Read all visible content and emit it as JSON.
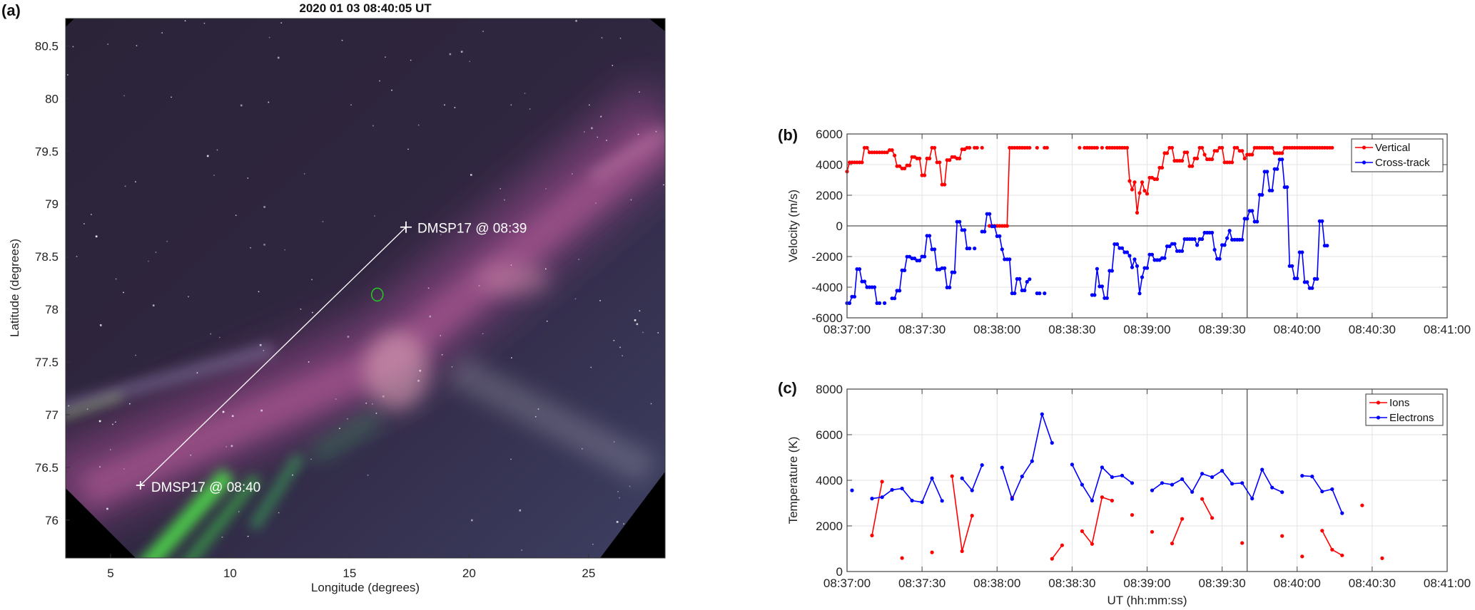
{
  "panel_a": {
    "label": "(a)",
    "title": "2020 01 03 08:40:05 UT",
    "xlabel": "Longitude (degrees)",
    "ylabel": "Latitude (degrees)",
    "xlim": [
      3.12,
      28.2
    ],
    "ylim": [
      75.64,
      80.76
    ],
    "xticks": [
      "5",
      "10",
      "15",
      "20",
      "25"
    ],
    "yticks": [
      "76",
      "76.5",
      "77",
      "77.5",
      "78",
      "78.5",
      "79",
      "79.5",
      "80",
      "80.5"
    ],
    "track": {
      "start": {
        "lon": 17.36,
        "lat": 78.78,
        "label": "DMSP17 @ 08:39"
      },
      "end": {
        "lon": 6.25,
        "lat": 76.33,
        "label": "DMSP17 @ 08:40"
      },
      "color": "#ffffff"
    },
    "marker_circle": {
      "lon": 16.16,
      "lat": 78.14,
      "color": "#22cc22"
    }
  },
  "chart_data": [
    {
      "type": "line",
      "label": "(b)",
      "ylabel": "Velocity (m/s)",
      "xlabel": "",
      "xlim": [
        "08:37:00",
        "08:41:00"
      ],
      "ylim": [
        -6000,
        6000
      ],
      "xticks": [
        "08:37:00",
        "08:37:30",
        "08:38:00",
        "08:38:30",
        "08:39:00",
        "08:39:30",
        "08:40:00",
        "08:40:30",
        "08:41:00"
      ],
      "yticks": [
        "-6000",
        "-4000",
        "-2000",
        "0",
        "2000",
        "4000",
        "6000"
      ],
      "grid": true,
      "zero_line": true,
      "vertical_marker": "08:39:40",
      "legend": "top-right",
      "x_start": "08:37:00",
      "x_step_seconds": 1,
      "series": [
        {
          "name": "Vertical",
          "color": "#ff0000",
          "values": [
            3550,
            4150,
            4150,
            4150,
            4150,
            4150,
            4150,
            5100,
            5100,
            4800,
            4800,
            4800,
            4800,
            4800,
            4800,
            4800,
            4800,
            4950,
            4950,
            4600,
            3900,
            3900,
            3750,
            3750,
            3950,
            3950,
            4500,
            4500,
            4400,
            4400,
            3300,
            3300,
            4400,
            4400,
            5100,
            5100,
            4150,
            4150,
            2700,
            2700,
            4300,
            4300,
            4500,
            4500,
            4400,
            4400,
            5000,
            5000,
            5100,
            5100,
            null,
            5100,
            5100,
            null,
            5100,
            null,
            null,
            0,
            0,
            0,
            0,
            0,
            0,
            0,
            0,
            5100,
            5100,
            5100,
            5100,
            5100,
            5100,
            5100,
            5100,
            5100,
            null,
            null,
            5100,
            null,
            null,
            5100,
            5100,
            null,
            null,
            null,
            null,
            null,
            null,
            null,
            null,
            null,
            null,
            null,
            null,
            5100,
            null,
            5100,
            5100,
            5100,
            5100,
            5100,
            5100,
            null,
            5100,
            null,
            5100,
            5100,
            5100,
            5100,
            5100,
            5100,
            5100,
            5100,
            5100,
            2930,
            2370,
            2850,
            860,
            2150,
            2850,
            2300,
            2100,
            3150,
            3150,
            3050,
            3050,
            3800,
            3800,
            4750,
            4750,
            5100,
            5100,
            4250,
            4250,
            4250,
            4250,
            4800,
            4800,
            3900,
            3900,
            4400,
            4400,
            5100,
            5100,
            4650,
            4350,
            4350,
            4350,
            4900,
            4900,
            5100,
            5100,
            4150,
            4150,
            4150,
            4150,
            5100,
            5100,
            4900,
            4900,
            4400,
            4650,
            4650,
            4650,
            5100,
            5100,
            5100,
            5100,
            5100,
            5100,
            5100,
            5100,
            4750,
            4750,
            4750,
            4750,
            5100,
            5100,
            5100,
            5100,
            5100,
            5100,
            5100,
            5100,
            5100,
            5100,
            5100,
            5100,
            5100,
            5100,
            5100,
            5100,
            5100,
            5100,
            5100,
            5100
          ]
        },
        {
          "name": "Cross-track",
          "color": "#0000ff",
          "values": [
            -5040,
            -5040,
            -4620,
            -4620,
            -2820,
            -2820,
            -3630,
            -3630,
            -4000,
            -4000,
            -4000,
            -4000,
            -5040,
            -5040,
            null,
            -5040,
            null,
            null,
            -4730,
            -4730,
            -4230,
            -4230,
            -2900,
            -2900,
            -2010,
            -2010,
            -2120,
            -2120,
            -2260,
            -2260,
            -2000,
            -2000,
            -640,
            -640,
            -1530,
            -1530,
            -2840,
            -2840,
            -2760,
            -2760,
            -4020,
            -4020,
            -3030,
            -3030,
            270,
            270,
            -270,
            -270,
            -1470,
            -1470,
            null,
            -1470,
            null,
            null,
            -370,
            -370,
            780,
            780,
            -30,
            -30,
            -670,
            -670,
            -1530,
            -2180,
            -2180,
            -2180,
            -4400,
            -4400,
            -3460,
            -3460,
            -4210,
            -4210,
            -3650,
            -3480,
            null,
            null,
            -4400,
            -4400,
            null,
            -4400,
            null,
            null,
            null,
            null,
            null,
            null,
            null,
            null,
            null,
            null,
            null,
            null,
            null,
            null,
            null,
            null,
            null,
            null,
            -4510,
            -4510,
            -2800,
            -3950,
            -3950,
            -4710,
            -4710,
            -2930,
            -2930,
            -1190,
            -1190,
            -1450,
            -1450,
            -1720,
            -1720,
            -1950,
            -2700,
            -2180,
            -2620,
            -4410,
            -3350,
            -2750,
            -2750,
            -1870,
            -1870,
            -2230,
            -2230,
            -2230,
            -2100,
            -2100,
            -1330,
            -1330,
            -1170,
            -1170,
            -1640,
            -1640,
            -1640,
            -860,
            -860,
            -860,
            -860,
            -860,
            -1250,
            -860,
            -860,
            -440,
            -440,
            -440,
            -440,
            -1560,
            -2150,
            -2150,
            -1250,
            -1250,
            -800,
            -310,
            -900,
            -900,
            -900,
            -900,
            -900,
            470,
            470,
            980,
            980,
            280,
            280,
            2030,
            2030,
            3540,
            3540,
            2310,
            2310,
            3710,
            3710,
            4340,
            4340,
            2530,
            2530,
            -2620,
            -2620,
            -3430,
            -3430,
            -1720,
            -1720,
            -3670,
            -3670,
            -4060,
            -4060,
            -3460,
            -3460,
            310,
            310,
            -1290,
            -1290
          ]
        }
      ]
    },
    {
      "type": "line",
      "label": "(c)",
      "ylabel": "Temperature (K)",
      "xlabel": "UT (hh:mm:ss)",
      "xlim": [
        "08:37:00",
        "08:41:00"
      ],
      "ylim": [
        0,
        8000
      ],
      "xticks": [
        "08:37:00",
        "08:37:30",
        "08:38:00",
        "08:38:30",
        "08:39:00",
        "08:39:30",
        "08:40:00",
        "08:40:30",
        "08:41:00"
      ],
      "yticks": [
        "0",
        "2000",
        "4000",
        "6000",
        "8000"
      ],
      "grid": true,
      "zero_line": false,
      "vertical_marker": "08:39:40",
      "legend": "top-right",
      "x_start": "08:37:02",
      "x_step_seconds": 4,
      "series": [
        {
          "name": "Ions",
          "color": "#ff0000",
          "values": [
            null,
            null,
            1580,
            3940,
            null,
            590,
            null,
            null,
            840,
            null,
            4180,
            890,
            2450,
            null,
            null,
            null,
            3240,
            null,
            null,
            null,
            560,
            1150,
            null,
            1770,
            1210,
            3260,
            3110,
            null,
            2480,
            null,
            1740,
            null,
            1230,
            2310,
            null,
            3180,
            2350,
            null,
            null,
            1250,
            null,
            null,
            null,
            1560,
            null,
            660,
            null,
            1790,
            960,
            710,
            null,
            2900,
            null,
            580
          ]
        },
        {
          "name": "Electrons",
          "color": "#0000ff",
          "values": [
            3560,
            null,
            3200,
            3260,
            3580,
            3640,
            3110,
            3040,
            4090,
            3100,
            null,
            4090,
            3560,
            4670,
            null,
            4560,
            3180,
            4170,
            4840,
            6900,
            5640,
            null,
            4690,
            3810,
            3110,
            4570,
            4140,
            4210,
            3880,
            null,
            3560,
            3880,
            3810,
            4050,
            3490,
            4290,
            4140,
            4420,
            3850,
            3880,
            3200,
            4470,
            3680,
            3480,
            null,
            4200,
            4170,
            3510,
            3610,
            2560,
            null,
            null,
            null,
            null
          ]
        }
      ]
    }
  ]
}
